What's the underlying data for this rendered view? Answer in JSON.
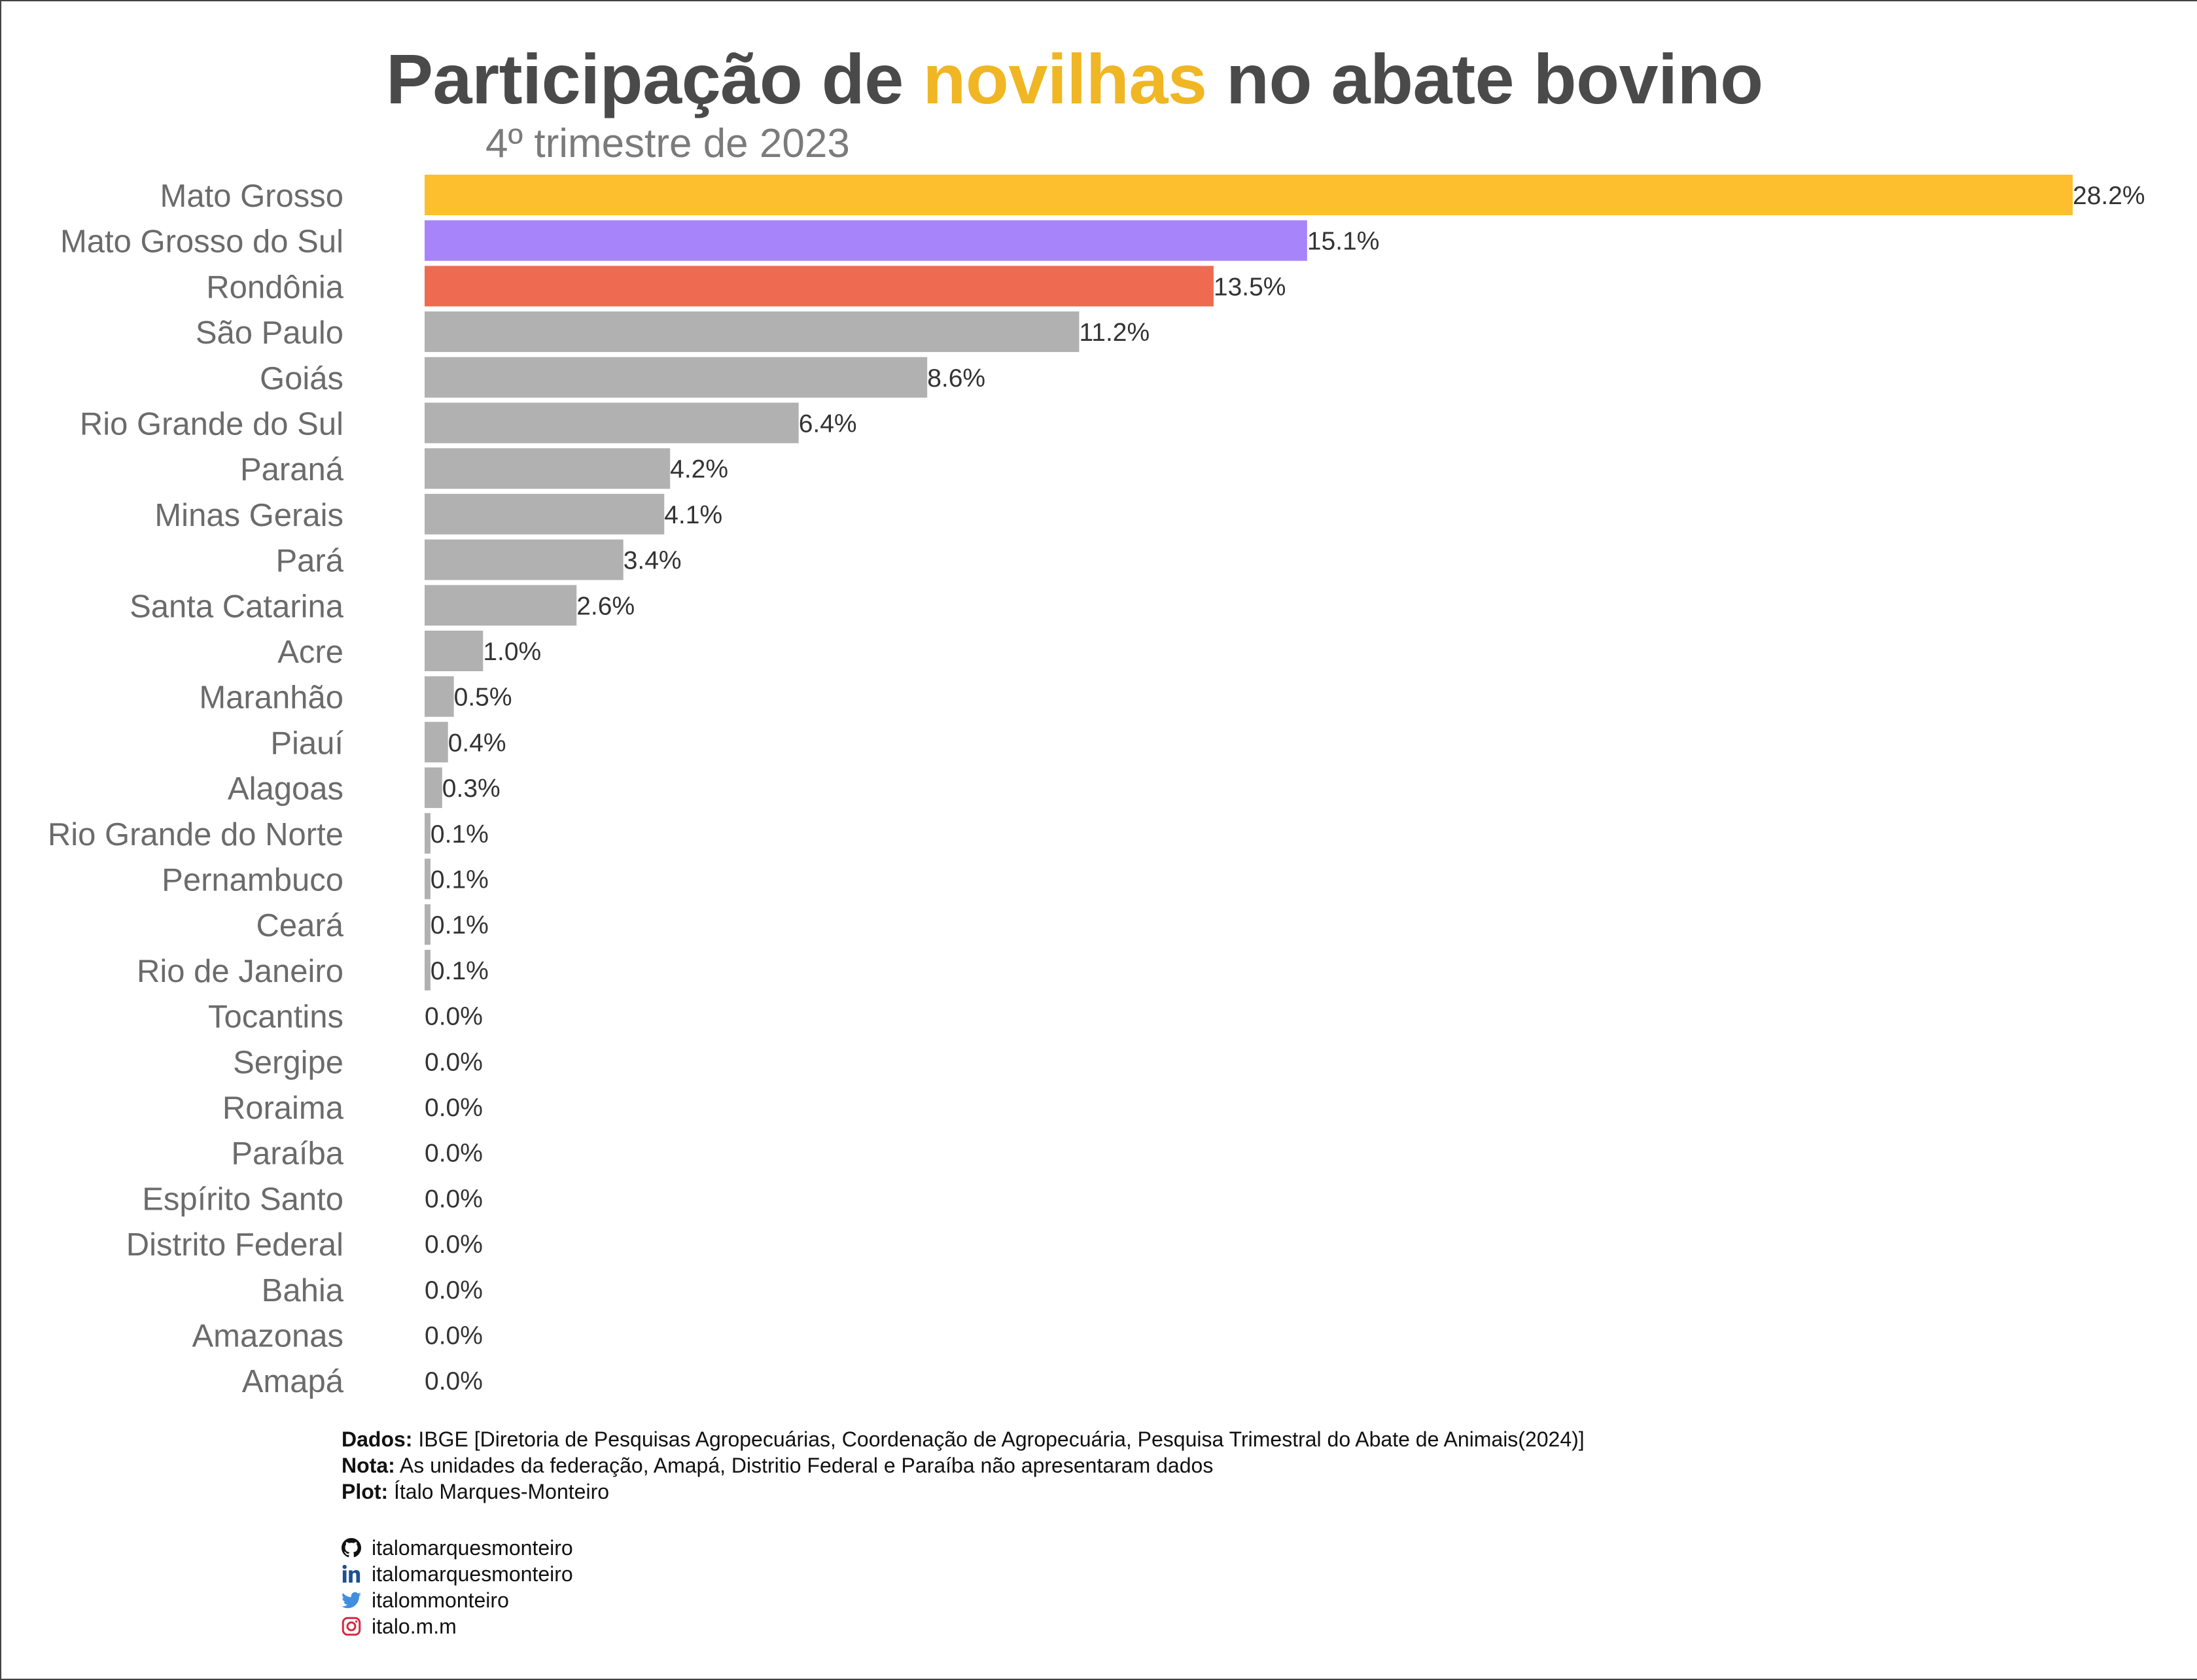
{
  "title": {
    "before": "Participação de",
    "highlight": "novilhas",
    "after": "no abate bovino"
  },
  "subtitle": "4º trimestre de 2023",
  "colors": {
    "highlight": "#f0b623",
    "mato_grosso": "#fdbf2d",
    "mato_grosso_do_sul": "#a884fb",
    "rondonia": "#ee6b52",
    "default_bar": "#b1b1b1",
    "category_label": "#6b6b6b",
    "value_label": "#333333"
  },
  "chart_data": {
    "type": "bar",
    "orientation": "horizontal",
    "title": "Participação de novilhas no abate bovino",
    "subtitle": "4º trimestre de 2023",
    "xlabel": "",
    "ylabel": "",
    "grid": false,
    "xlim": [
      0,
      30
    ],
    "categories": [
      "Mato Grosso",
      "Mato Grosso do Sul",
      "Rondônia",
      "São Paulo",
      "Goiás",
      "Rio Grande do Sul",
      "Paraná",
      "Minas Gerais",
      "Pará",
      "Santa Catarina",
      "Acre",
      "Maranhão",
      "Piauí",
      "Alagoas",
      "Rio Grande do Norte",
      "Pernambuco",
      "Ceará",
      "Rio de Janeiro",
      "Tocantins",
      "Sergipe",
      "Roraima",
      "Paraíba",
      "Espírito Santo",
      "Distrito Federal",
      "Bahia",
      "Amazonas",
      "Amapá"
    ],
    "values": [
      28.2,
      15.1,
      13.5,
      11.2,
      8.6,
      6.4,
      4.2,
      4.1,
      3.4,
      2.6,
      1.0,
      0.5,
      0.4,
      0.3,
      0.1,
      0.1,
      0.1,
      0.1,
      0.0,
      0.0,
      0.0,
      0.0,
      0.0,
      0.0,
      0.0,
      0.0,
      0.0
    ],
    "value_labels": [
      "28.2%",
      "15.1%",
      "13.5%",
      "11.2%",
      "8.6%",
      "6.4%",
      "4.2%",
      "4.1%",
      "3.4%",
      "2.6%",
      "1.0%",
      "0.5%",
      "0.4%",
      "0.3%",
      "0.1%",
      "0.1%",
      "0.1%",
      "0.1%",
      "0.0%",
      "0.0%",
      "0.0%",
      "0.0%",
      "0.0%",
      "0.0%",
      "0.0%",
      "0.0%",
      "0.0%"
    ]
  },
  "caption": {
    "dados_label": "Dados:",
    "dados_text": "IBGE [Diretoria de Pesquisas Agropecuárias, Coordenação de Agropecuária, Pesquisa Trimestral do Abate de Animais(2024)]",
    "nota_label": "Nota:",
    "nota_text": "As unidades da federação, Amapá, Distritio Federal e Paraíba não apresentaram dados",
    "plot_label": "Plot:",
    "plot_text": "Ítalo Marques-Monteiro"
  },
  "social": [
    {
      "icon": "github-icon",
      "handle": "italomarquesmonteiro"
    },
    {
      "icon": "linkedin-icon",
      "handle": "italomarquesmonteiro"
    },
    {
      "icon": "twitter-icon",
      "handle": "italommonteiro"
    },
    {
      "icon": "instagram-icon",
      "handle": "italo.m.m"
    }
  ]
}
